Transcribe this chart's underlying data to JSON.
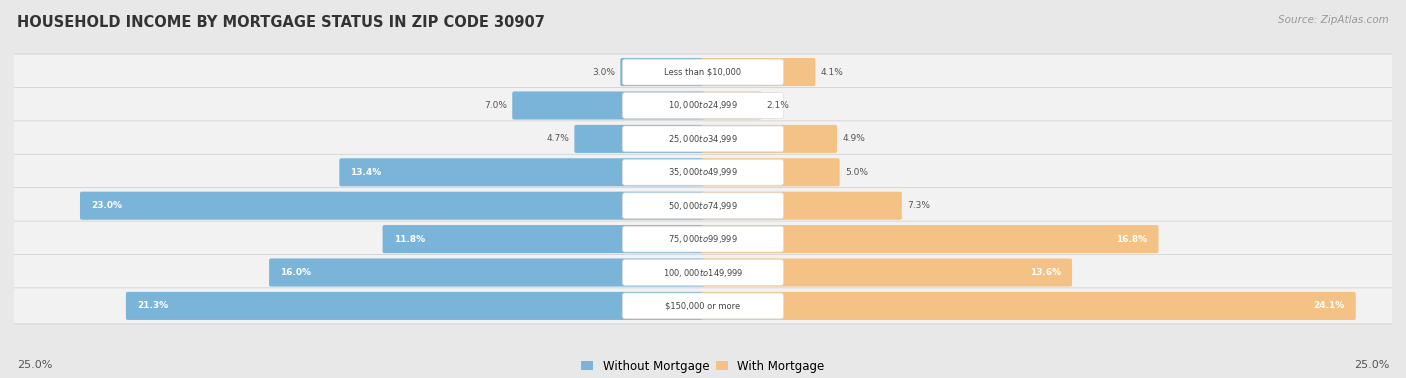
{
  "title": "HOUSEHOLD INCOME BY MORTGAGE STATUS IN ZIP CODE 30907",
  "source": "Source: ZipAtlas.com",
  "categories": [
    "Less than $10,000",
    "$10,000 to $24,999",
    "$25,000 to $34,999",
    "$35,000 to $49,999",
    "$50,000 to $74,999",
    "$75,000 to $99,999",
    "$100,000 to $149,999",
    "$150,000 or more"
  ],
  "without_mortgage": [
    3.0,
    7.0,
    4.7,
    13.4,
    23.0,
    11.8,
    16.0,
    21.3
  ],
  "with_mortgage": [
    4.1,
    2.1,
    4.9,
    5.0,
    7.3,
    16.8,
    13.6,
    24.1
  ],
  "color_without": "#7ab4d8",
  "color_with": "#f5c285",
  "max_val": 25.0,
  "background_color": "#e8e8e8",
  "row_bg_color": "#f2f2f2",
  "legend_labels": [
    "Without Mortgage",
    "With Mortgage"
  ],
  "axis_label_left": "25.0%",
  "axis_label_right": "25.0%",
  "title_color": "#333333",
  "source_color": "#999999",
  "label_color_outside": "#555555",
  "label_color_inside": "#ffffff"
}
